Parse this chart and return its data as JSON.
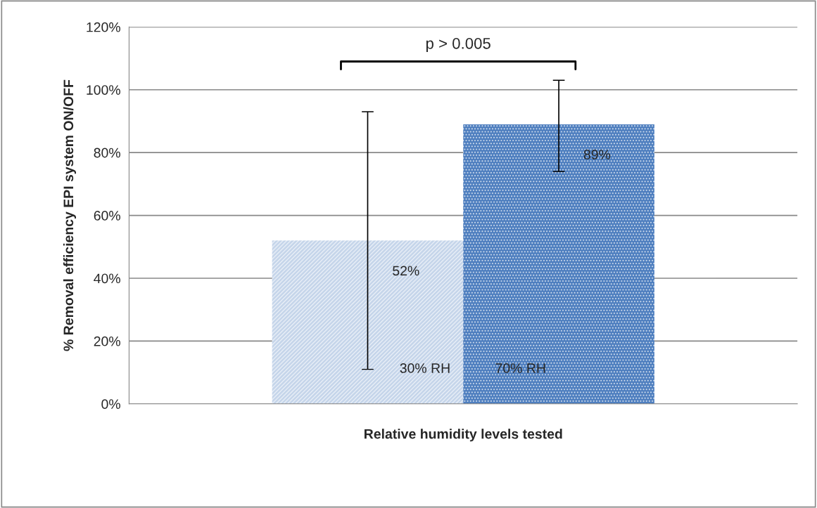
{
  "chart_data": {
    "type": "bar",
    "categories": [
      null
    ],
    "series": [
      {
        "name": "30% RH",
        "color": "#c5d5ea",
        "values": [
          52
        ],
        "errors": [
          41
        ],
        "value_labels": [
          "52%"
        ]
      },
      {
        "name": "70% RH",
        "color": "#4f7fbf",
        "values": [
          89
        ],
        "errors": [
          [
            74,
            103
          ]
        ],
        "value_labels": [
          "89%"
        ]
      }
    ],
    "xlabel": "Relative humidity levels tested",
    "ylabel": "% Removal efficiency EPI system ON/OFF",
    "ylim": [
      0,
      120
    ],
    "yticks": [
      {
        "value": 0,
        "label": "0%"
      },
      {
        "value": 20,
        "label": "20%"
      },
      {
        "value": 40,
        "label": "40%"
      },
      {
        "value": 60,
        "label": "60%"
      },
      {
        "value": 80,
        "label": "80%"
      },
      {
        "value": 100,
        "label": "100%"
      },
      {
        "value": 120,
        "label": "120%"
      }
    ],
    "grid": "y",
    "legend": false,
    "annotations": [
      "p > 0.005"
    ]
  }
}
